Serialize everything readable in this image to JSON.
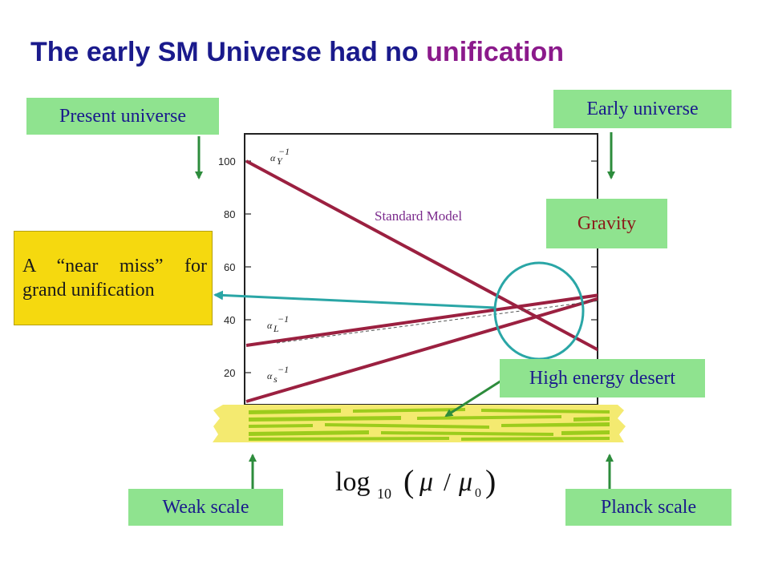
{
  "title": {
    "main": "The early SM Universe had no ",
    "accent": "unification"
  },
  "colors": {
    "title": "#1a1a8c",
    "accent": "#8b1a8b",
    "box_fill": "#8fe38f",
    "callout_fill": "#f5d90f",
    "coupling_line": "#9b2040",
    "circle": "#2aa6a6",
    "arrow": "#2d8c3c"
  },
  "labels": {
    "present_universe": "Present universe",
    "early_universe": "Early universe",
    "gravity": "Gravity",
    "near_miss_line1": "A “near miss” for",
    "near_miss_line2": "grand unification",
    "high_energy_desert": "High energy desert",
    "weak_scale": "Weak scale",
    "planck_scale": "Planck scale",
    "standard_model": "Standard Model"
  },
  "plot": {
    "y_ticks": [
      "100",
      "80",
      "60",
      "40",
      "20"
    ],
    "alpha_labels": {
      "y": "α",
      "y_sub": "Y",
      "l": "α",
      "l_sub": "L",
      "s": "α",
      "s_sub": "s",
      "sup": "−1"
    },
    "x_axis": {
      "log": "log",
      "sub": "10",
      "mu": "μ",
      "mu0": "μ",
      "mu0_sub": "0"
    }
  }
}
